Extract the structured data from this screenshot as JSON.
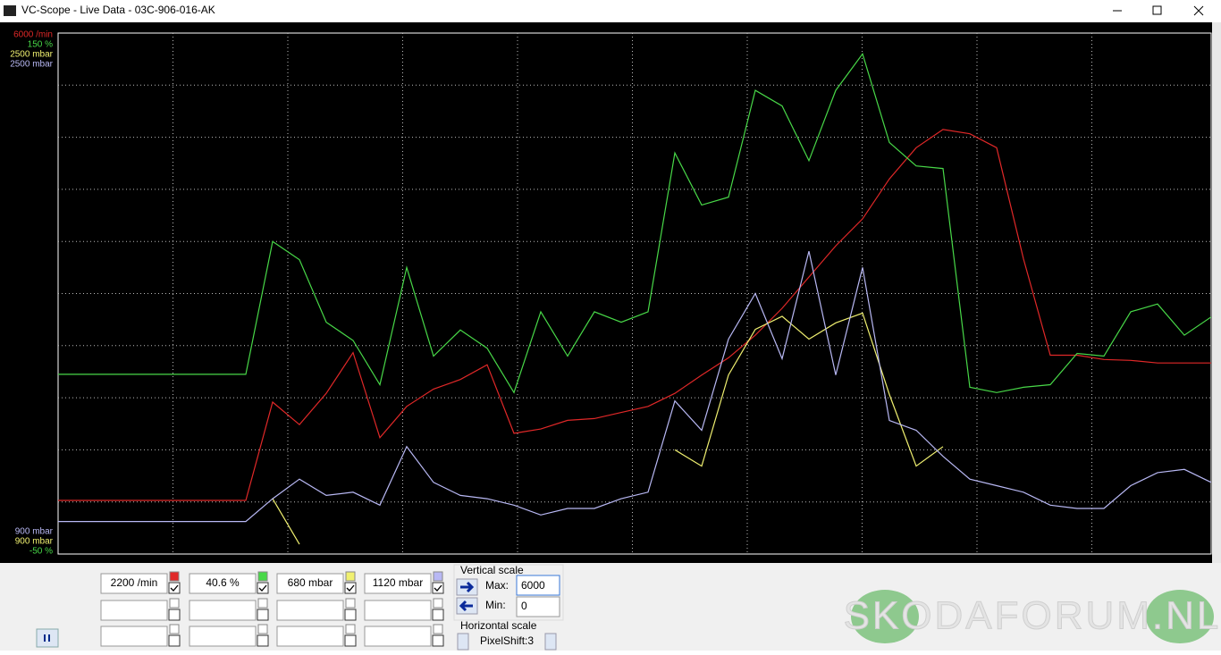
{
  "window": {
    "title": "VC-Scope  -  Live Data  -  03C-906-016-AK"
  },
  "chart_data": {
    "type": "line",
    "series": [
      {
        "color": "#e02828",
        "ylim": [
          0,
          6000
        ],
        "yticks": [
          {
            "value": 6000,
            "label": "6000 /min"
          }
        ],
        "values": [
          617,
          617,
          617,
          617,
          617,
          617,
          617,
          617,
          1750,
          1490,
          1850,
          2320,
          1340,
          1700,
          1900,
          2010,
          2180,
          1390,
          1440,
          1540,
          1560,
          1630,
          1700,
          1850,
          2060,
          2260,
          2520,
          2830,
          3190,
          3550,
          3860,
          4320,
          4680,
          4890,
          4840,
          4680,
          3400,
          2290,
          2290,
          2240,
          2230,
          2200,
          2200,
          2200
        ]
      },
      {
        "color": "#48d848",
        "ylim": [
          -50,
          150
        ],
        "yticks": [
          {
            "value": -50,
            "label": "-50 %"
          },
          {
            "value": 150,
            "label": "150 %"
          }
        ],
        "values": [
          19,
          19,
          19,
          19,
          19,
          19,
          19,
          19,
          70,
          63,
          39,
          32,
          15,
          60,
          26,
          36,
          29,
          12,
          43,
          26,
          43,
          39,
          43,
          104,
          84,
          87,
          128,
          122,
          101,
          128,
          142,
          108,
          99,
          98,
          14,
          12,
          14,
          15,
          27,
          26,
          43,
          46,
          34,
          41
        ]
      },
      {
        "color": "#f0f070",
        "ylim": [
          900,
          2500
        ],
        "yticks": [
          {
            "value": 900,
            "label": "900 mbar"
          },
          {
            "value": 2500,
            "label": "2500 mbar"
          }
        ],
        "values": [
          null,
          null,
          null,
          null,
          null,
          null,
          null,
          null,
          1070,
          930,
          null,
          null,
          null,
          null,
          null,
          null,
          null,
          null,
          null,
          null,
          null,
          null,
          null,
          1220,
          1170,
          1450,
          1590,
          1630,
          1560,
          1610,
          1640,
          1390,
          1170,
          1230,
          null,
          null,
          null,
          null,
          null,
          null,
          null,
          null,
          null,
          null
        ]
      },
      {
        "color": "#b8b8f4",
        "ylim": [
          900,
          2500
        ],
        "yticks": [
          {
            "value": 900,
            "label": "900 mbar"
          },
          {
            "value": 2500,
            "label": "2500 mbar"
          }
        ],
        "values": [
          1000,
          1000,
          1000,
          1000,
          1000,
          1000,
          1000,
          1000,
          1070,
          1130,
          1080,
          1090,
          1050,
          1230,
          1120,
          1080,
          1070,
          1050,
          1020,
          1040,
          1040,
          1070,
          1090,
          1370,
          1280,
          1560,
          1700,
          1500,
          1830,
          1450,
          1780,
          1310,
          1280,
          1200,
          1130,
          1110,
          1090,
          1050,
          1040,
          1040,
          1110,
          1150,
          1160,
          1120
        ]
      }
    ]
  },
  "panel": {
    "readouts": [
      "2200 /min",
      "40.6 %",
      "680 mbar",
      "1120 mbar"
    ],
    "vertical_scale": {
      "title": "Vertical scale",
      "max_label": "Max:",
      "max": "6000",
      "min_label": "Min:",
      "min": "0"
    },
    "horizontal_scale": {
      "title": "Horizontal scale",
      "setting": "PixelShift:3"
    }
  },
  "watermark": "SKODAFORUM.NL"
}
